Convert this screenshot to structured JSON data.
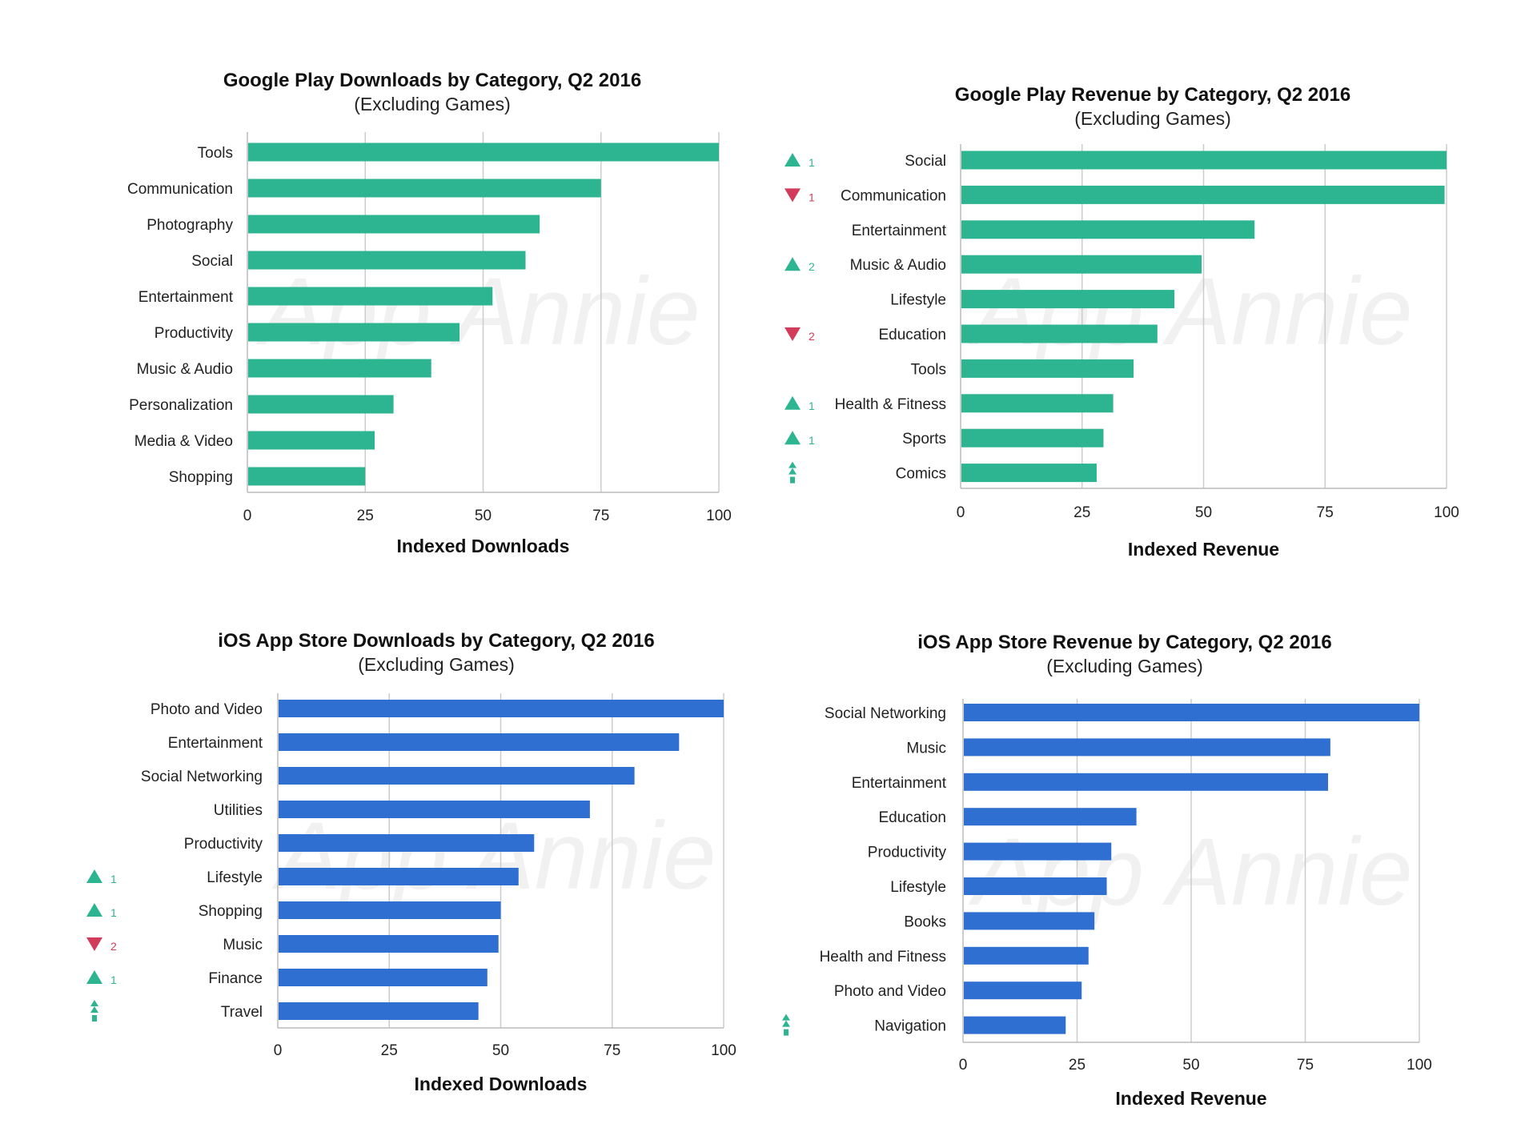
{
  "watermark": "App Annie",
  "colors": {
    "green_bar": "#2db592",
    "blue_bar": "#2f6fd1",
    "up": "#2db592",
    "down": "#d23c5a",
    "grid": "#cccccc"
  },
  "chart_data": [
    {
      "id": "gp-downloads",
      "type": "bar",
      "orientation": "horizontal",
      "title": "Google Play Downloads by Category, Q2 2016",
      "subtitle": "(Excluding Games)",
      "xlabel": "Indexed Downloads",
      "xlim": [
        0,
        100
      ],
      "ticks": [
        0,
        25,
        50,
        75,
        100
      ],
      "color": "#2db592",
      "categories": [
        "Tools",
        "Communication",
        "Photography",
        "Social",
        "Entertainment",
        "Productivity",
        "Music & Audio",
        "Personalization",
        "Media & Video",
        "Shopping"
      ],
      "values": [
        100,
        75,
        62,
        59,
        52,
        45,
        39,
        31,
        27,
        25
      ],
      "rank_changes": [
        null,
        null,
        null,
        null,
        null,
        null,
        null,
        null,
        null,
        null
      ]
    },
    {
      "id": "gp-revenue",
      "type": "bar",
      "orientation": "horizontal",
      "title": "Google Play Revenue by Category, Q2 2016",
      "subtitle": "(Excluding Games)",
      "xlabel": "Indexed Revenue",
      "xlim": [
        0,
        100
      ],
      "ticks": [
        0,
        25,
        50,
        75,
        100
      ],
      "color": "#2db592",
      "categories": [
        "Social",
        "Communication",
        "Entertainment",
        "Music & Audio",
        "Lifestyle",
        "Education",
        "Tools",
        "Health & Fitness",
        "Sports",
        "Comics"
      ],
      "values": [
        100,
        99.6,
        60.5,
        49.6,
        44,
        40.5,
        35.6,
        31.4,
        29.4,
        28
      ],
      "rank_changes": [
        {
          "dir": "up",
          "n": "1"
        },
        {
          "dir": "down",
          "n": "1"
        },
        null,
        {
          "dir": "up",
          "n": "2"
        },
        null,
        {
          "dir": "down",
          "n": "2"
        },
        null,
        {
          "dir": "up",
          "n": "1"
        },
        {
          "dir": "up",
          "n": "1"
        },
        {
          "dir": "new",
          "n": ""
        }
      ]
    },
    {
      "id": "ios-downloads",
      "type": "bar",
      "orientation": "horizontal",
      "title": "iOS App Store Downloads by Category, Q2 2016",
      "subtitle": "(Excluding Games)",
      "xlabel": "Indexed Downloads",
      "xlim": [
        0,
        100
      ],
      "ticks": [
        0,
        25,
        50,
        75,
        100
      ],
      "color": "#2f6fd1",
      "categories": [
        "Photo and Video",
        "Entertainment",
        "Social Networking",
        "Utilities",
        "Productivity",
        "Lifestyle",
        "Shopping",
        "Music",
        "Finance",
        "Travel"
      ],
      "values": [
        100,
        90,
        80,
        70,
        57.5,
        54,
        50,
        49.5,
        47,
        45
      ],
      "rank_changes": [
        null,
        null,
        null,
        null,
        null,
        {
          "dir": "up",
          "n": "1"
        },
        {
          "dir": "up",
          "n": "1"
        },
        {
          "dir": "down",
          "n": "2"
        },
        {
          "dir": "up",
          "n": "1"
        },
        {
          "dir": "new",
          "n": ""
        }
      ]
    },
    {
      "id": "ios-revenue",
      "type": "bar",
      "orientation": "horizontal",
      "title": "iOS App Store Revenue by Category, Q2 2016",
      "subtitle": "(Excluding Games)",
      "xlabel": "Indexed Revenue",
      "xlim": [
        0,
        100
      ],
      "ticks": [
        0,
        25,
        50,
        75,
        100
      ],
      "color": "#2f6fd1",
      "categories": [
        "Social Networking",
        "Music",
        "Entertainment",
        "Education",
        "Productivity",
        "Lifestyle",
        "Books",
        "Health and Fitness",
        "Photo and Video",
        "Navigation"
      ],
      "values": [
        100,
        80.5,
        80,
        38,
        32.5,
        31.5,
        28.8,
        27.5,
        26,
        22.5
      ],
      "rank_changes": [
        null,
        null,
        null,
        null,
        null,
        null,
        null,
        null,
        null,
        {
          "dir": "new",
          "n": ""
        }
      ]
    }
  ]
}
